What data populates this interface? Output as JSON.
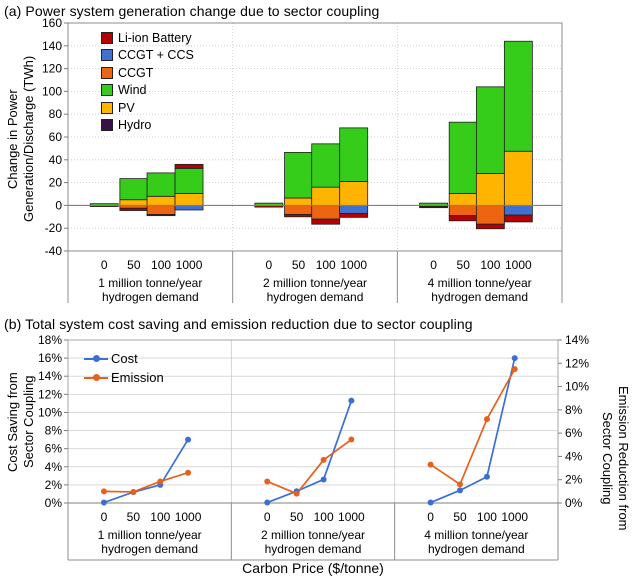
{
  "figure": {
    "xlabel": "Carbon Price ($/tonne)"
  },
  "chart_data": [
    {
      "type": "bar",
      "title": "(a) Power system generation change due to sector coupling",
      "ylabel": "Change in Power Generation/Discharge (TWh)",
      "ylabel_lines": [
        "Change in Power",
        "Generation/Discharge (TWh)"
      ],
      "ylim": [
        -40,
        160
      ],
      "ytick_step": 20,
      "ytick_labels": [
        "160",
        "140",
        "120",
        "100",
        "80",
        "60",
        "40",
        "20",
        "0",
        "-20",
        "-40"
      ],
      "grid": "dotted horizontal",
      "legend_position": "top-left inside",
      "series_colors": {
        "liion": "#B30000",
        "ccgt_ccs": "#4070D0",
        "ccgt": "#EE6511",
        "wind": "#35CC1A",
        "pv": "#FFB400",
        "hydro": "#381245"
      },
      "legend": [
        {
          "key": "liion",
          "label": "Li-ion Battery"
        },
        {
          "key": "ccgt_ccs",
          "label": "CCGT + CCS"
        },
        {
          "key": "ccgt",
          "label": "CCGT"
        },
        {
          "key": "wind",
          "label": "Wind"
        },
        {
          "key": "pv",
          "label": "PV"
        },
        {
          "key": "hydro",
          "label": "Hydro"
        }
      ],
      "groups": [
        {
          "label_lines": [
            "1 million tonne/year",
            "hydrogen demand"
          ],
          "carbon_prices": [
            "0",
            "50",
            "100",
            "1000"
          ],
          "bars": [
            {
              "price": "0",
              "pos": [
                [
                  "wind",
                  1.5
                ]
              ],
              "neg": [
                [
                  "liion",
                  -1
                ]
              ]
            },
            {
              "price": "50",
              "pos": [
                [
                  "pv",
                  5
                ],
                [
                  "wind",
                  18.5
                ]
              ],
              "neg": [
                [
                  "ccgt",
                  -2.5
                ],
                [
                  "liion",
                  -2
                ]
              ]
            },
            {
              "price": "100",
              "pos": [
                [
                  "pv",
                  8
                ],
                [
                  "wind",
                  20.5
                ]
              ],
              "neg": [
                [
                  "ccgt",
                  -8
                ],
                [
                  "liion",
                  -1
                ]
              ]
            },
            {
              "price": "1000",
              "pos": [
                [
                  "pv",
                  10.5
                ],
                [
                  "wind",
                  22
                ],
                [
                  "liion",
                  3.5
                ]
              ],
              "neg": [
                [
                  "ccgt_ccs",
                  -4
                ]
              ]
            }
          ]
        },
        {
          "label_lines": [
            "2 million tonne/year",
            "hydrogen demand"
          ],
          "carbon_prices": [
            "0",
            "50",
            "100",
            "1000"
          ],
          "bars": [
            {
              "price": "0",
              "pos": [
                [
                  "wind",
                  2
                ]
              ],
              "neg": [
                [
                  "liion",
                  -1.5
                ]
              ]
            },
            {
              "price": "50",
              "pos": [
                [
                  "pv",
                  6.5
                ],
                [
                  "wind",
                  40
                ]
              ],
              "neg": [
                [
                  "ccgt",
                  -8
                ],
                [
                  "liion",
                  -2
                ]
              ]
            },
            {
              "price": "100",
              "pos": [
                [
                  "pv",
                  16
                ],
                [
                  "wind",
                  38
                ]
              ],
              "neg": [
                [
                  "ccgt",
                  -12
                ],
                [
                  "liion",
                  -4.5
                ]
              ]
            },
            {
              "price": "1000",
              "pos": [
                [
                  "pv",
                  21
                ],
                [
                  "wind",
                  47
                ]
              ],
              "neg": [
                [
                  "ccgt_ccs",
                  -7
                ],
                [
                  "liion",
                  -3.5
                ]
              ]
            }
          ]
        },
        {
          "label_lines": [
            "4 million tonne/year",
            "hydrogen demand"
          ],
          "carbon_prices": [
            "0",
            "50",
            "100",
            "1000"
          ],
          "bars": [
            {
              "price": "0",
              "pos": [
                [
                  "wind",
                  2
                ]
              ],
              "neg": [
                [
                  "ccgt",
                  -1
                ],
                [
                  "liion",
                  -1
                ]
              ]
            },
            {
              "price": "50",
              "pos": [
                [
                  "pv",
                  10.5
                ],
                [
                  "wind",
                  62.5
                ]
              ],
              "neg": [
                [
                  "ccgt",
                  -9
                ],
                [
                  "liion",
                  -4.5
                ]
              ]
            },
            {
              "price": "100",
              "pos": [
                [
                  "pv",
                  28
                ],
                [
                  "wind",
                  76
                ]
              ],
              "neg": [
                [
                  "ccgt",
                  -16.5
                ],
                [
                  "liion",
                  -4
                ]
              ]
            },
            {
              "price": "1000",
              "pos": [
                [
                  "pv",
                  47.5
                ],
                [
                  "wind",
                  96.5
                ]
              ],
              "neg": [
                [
                  "ccgt_ccs",
                  -8.5
                ],
                [
                  "liion",
                  -6
                ]
              ]
            }
          ]
        }
      ]
    },
    {
      "type": "line",
      "title": "(b) Total system cost saving and emission reduction due to sector coupling",
      "ylabel_left": "Cost Saving from Sector Coupling",
      "ylabel_left_lines": [
        "Cost Saving from",
        "Sector Coupling"
      ],
      "ylabel_right": "Emission Reduction from Sector Coupling",
      "ylabel_right_lines": [
        "Emission Reduction from",
        "Sector Coupling"
      ],
      "ylim_left": [
        0,
        18
      ],
      "ylim_right": [
        0,
        14
      ],
      "ytick_labels_left": [
        "0%",
        "2%",
        "4%",
        "6%",
        "8%",
        "10%",
        "12%",
        "14%",
        "16%",
        "18%"
      ],
      "ytick_labels_right": [
        "0%",
        "2%",
        "4%",
        "6%",
        "8%",
        "10%",
        "12%",
        "14%"
      ],
      "grid": "solid horizontal every 2%",
      "legend": [
        {
          "key": "cost",
          "label": "Cost",
          "color": "#3C6FD6",
          "axis": "left"
        },
        {
          "key": "emission",
          "label": "Emission",
          "color": "#E8611C",
          "axis": "right"
        }
      ],
      "groups": [
        {
          "label_lines": [
            "1 million tonne/year",
            "hydrogen demand"
          ],
          "x": [
            "0",
            "50",
            "100",
            "1000"
          ],
          "cost_pct": [
            0.05,
            1.2,
            2.0,
            7.0
          ],
          "emission_pct": [
            1.0,
            0.95,
            1.85,
            2.6
          ]
        },
        {
          "label_lines": [
            "2 million tonne/year",
            "hydrogen demand"
          ],
          "x": [
            "0",
            "50",
            "100",
            "1000"
          ],
          "cost_pct": [
            0.05,
            1.3,
            2.6,
            11.3
          ],
          "emission_pct": [
            1.85,
            0.8,
            3.7,
            5.45
          ]
        },
        {
          "label_lines": [
            "4 million tonne/year",
            "hydrogen demand"
          ],
          "x": [
            "0",
            "50",
            "100",
            "1000"
          ],
          "cost_pct": [
            0.05,
            1.4,
            2.9,
            16.0
          ],
          "emission_pct": [
            3.3,
            1.6,
            7.2,
            11.5
          ]
        }
      ]
    }
  ]
}
